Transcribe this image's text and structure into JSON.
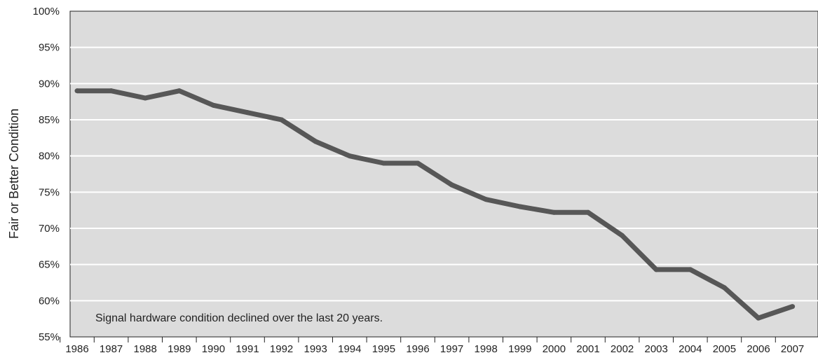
{
  "chart_data": {
    "type": "line",
    "title": "",
    "xlabel": "",
    "ylabel": "Fair or Better Condition",
    "annotation": "Signal hardware condition declined over the last 20 years.",
    "ylim": [
      55,
      100
    ],
    "y_ticks": [
      "55%",
      "60%",
      "65%",
      "70%",
      "75%",
      "80%",
      "85%",
      "90%",
      "95%",
      "100%"
    ],
    "grid": true,
    "legend": "none",
    "colors": {
      "plot_bg": "#dcdcdc",
      "grid": "#ffffff",
      "line": "#575757"
    },
    "categories": [
      "1986",
      "1987",
      "1988",
      "1989",
      "1990",
      "1991",
      "1992",
      "1993",
      "1994",
      "1995",
      "1996",
      "1997",
      "1998",
      "1999",
      "2000",
      "2001",
      "2002",
      "2003",
      "2004",
      "2005",
      "2006",
      "2007"
    ],
    "series": [
      {
        "values": [
          89,
          89,
          88,
          89,
          87,
          86,
          85,
          82,
          80,
          79,
          79,
          76,
          74,
          73,
          72.2,
          72.2,
          69,
          64.3,
          64.3,
          61.8,
          57.6,
          59.2
        ]
      }
    ]
  }
}
